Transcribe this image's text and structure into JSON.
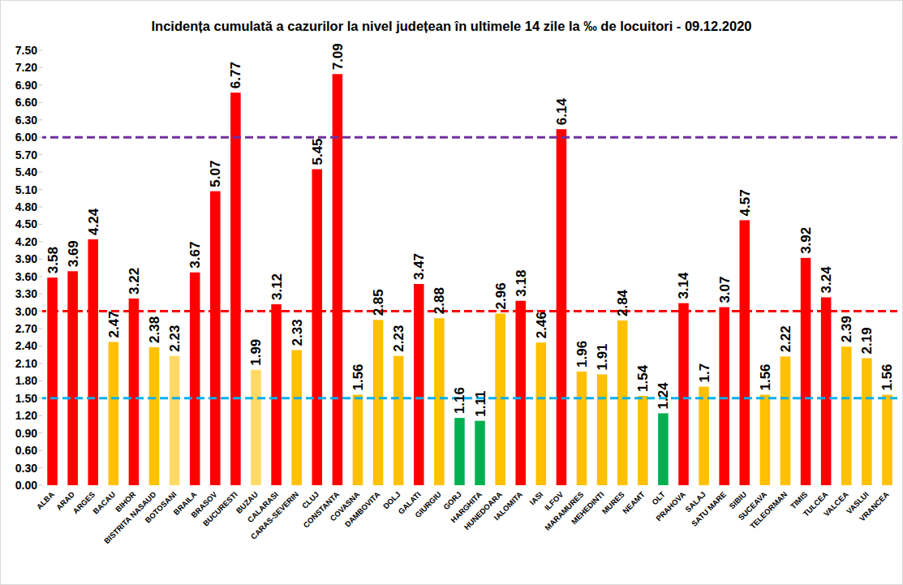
{
  "chart_data": {
    "type": "bar",
    "title": "Incidența cumulată a cazurilor la nivel județean în ultimele 14 zile la ‰ de locuitori - 09.12.2020",
    "categories": [
      "ALBA",
      "ARAD",
      "ARGES",
      "BACAU",
      "BIHOR",
      "BISTRITA NASAUD",
      "BOTOSANI",
      "BRAILA",
      "BRASOV",
      "BUCURESTI",
      "BUZAU",
      "CALARASI",
      "CARAS-SEVERIN",
      "CLUJ",
      "CONSTANTA",
      "COVASNA",
      "DAMBOVITA",
      "DOLJ",
      "GALATI",
      "GIURGIU",
      "GORJ",
      "HARGHITA",
      "HUNEDOARA",
      "IALOMITA",
      "IASI",
      "ILFOV",
      "MARAMURES",
      "MEHEDINTI",
      "MURES",
      "NEAMT",
      "OLT",
      "PRAHOVA",
      "SALAJ",
      "SATU MARE",
      "SIBIU",
      "SUCEAVA",
      "TELEORMAN",
      "TIMIS",
      "TULCEA",
      "VALCEA",
      "VASLUI",
      "VRANCEA"
    ],
    "values": [
      3.58,
      3.69,
      4.24,
      2.47,
      3.22,
      2.38,
      2.23,
      3.67,
      5.07,
      6.77,
      1.99,
      3.12,
      2.33,
      5.45,
      7.09,
      1.56,
      2.85,
      2.23,
      3.47,
      2.88,
      1.16,
      1.11,
      2.96,
      3.18,
      2.46,
      6.14,
      1.96,
      1.91,
      2.84,
      1.54,
      1.24,
      3.14,
      1.7,
      3.07,
      4.57,
      1.56,
      2.22,
      3.92,
      3.24,
      2.39,
      2.19,
      1.56
    ],
    "colors": [
      "#ff0000",
      "#ff0000",
      "#ff0000",
      "#ffc000",
      "#ff0000",
      "#ffc000",
      "#ffd966",
      "#ff0000",
      "#ff0000",
      "#ff0000",
      "#ffd966",
      "#ff0000",
      "#ffc000",
      "#ff0000",
      "#ff0000",
      "#ffc000",
      "#ffc000",
      "#ffc000",
      "#ff0000",
      "#ffc000",
      "#00b050",
      "#00b050",
      "#ffc000",
      "#ff0000",
      "#ffc000",
      "#ff0000",
      "#ffc000",
      "#ffc000",
      "#ffc000",
      "#ffc000",
      "#00b050",
      "#ff0000",
      "#ffc000",
      "#ff0000",
      "#ff0000",
      "#ffc000",
      "#ffc000",
      "#ff0000",
      "#ff0000",
      "#ffc000",
      "#ffc000",
      "#ffc000"
    ],
    "ylim": [
      0,
      7.5
    ],
    "yticks": [
      {
        "value": 0,
        "label": "0.00"
      },
      {
        "value": 0.3,
        "label": "0.30"
      },
      {
        "value": 0.6,
        "label": "0.60"
      },
      {
        "value": 0.9,
        "label": "0.90"
      },
      {
        "value": 1.2,
        "label": "1.20"
      },
      {
        "value": 1.5,
        "label": "1.50"
      },
      {
        "value": 1.8,
        "label": "1.80"
      },
      {
        "value": 2.1,
        "label": "2.10"
      },
      {
        "value": 2.4,
        "label": "2.40"
      },
      {
        "value": 2.7,
        "label": "2.70"
      },
      {
        "value": 3,
        "label": "3.00"
      },
      {
        "value": 3.3,
        "label": "3.30"
      },
      {
        "value": 3.6,
        "label": "3.60"
      },
      {
        "value": 3.9,
        "label": "3.90"
      },
      {
        "value": 4.2,
        "label": "4.20"
      },
      {
        "value": 4.5,
        "label": "4.50"
      },
      {
        "value": 4.8,
        "label": "4.80"
      },
      {
        "value": 5.1,
        "label": "5.10"
      },
      {
        "value": 5.4,
        "label": "5.40"
      },
      {
        "value": 5.7,
        "label": "5.70"
      },
      {
        "value": 6,
        "label": "6.00"
      },
      {
        "value": 6.3,
        "label": "6.30"
      },
      {
        "value": 6.6,
        "label": "6.60"
      },
      {
        "value": 6.9,
        "label": "6.90"
      },
      {
        "value": 7.2,
        "label": "7.20"
      },
      {
        "value": 7.5,
        "label": "7.50"
      }
    ],
    "reference_lines": [
      {
        "value": 6,
        "color": "#7030a0"
      },
      {
        "value": 3,
        "color": "#ff0000"
      },
      {
        "value": 1.5,
        "color": "#00b0f0"
      }
    ],
    "grid": false,
    "data_labels": true
  }
}
